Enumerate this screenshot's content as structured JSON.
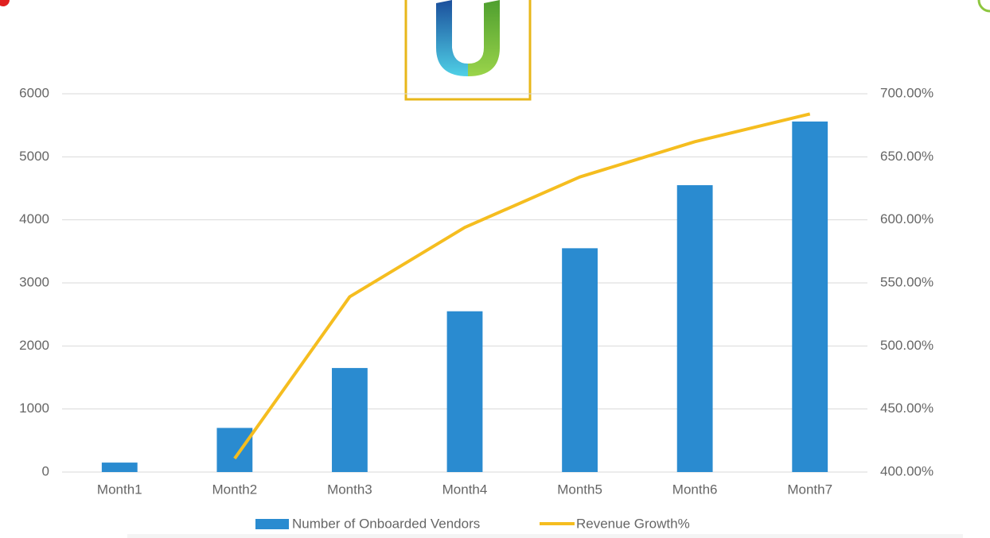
{
  "chart_data": {
    "type": "bar-line",
    "categories": [
      "Month1",
      "Month2",
      "Month3",
      "Month4",
      "Month5",
      "Month6",
      "Month7"
    ],
    "series": [
      {
        "name": "Number of Onboarded Vendors",
        "type": "bar",
        "color": "#2a8bd0",
        "values": [
          150,
          700,
          1650,
          2550,
          3550,
          4550,
          5560
        ]
      },
      {
        "name": "Revenue Growth%",
        "type": "line",
        "axis": "y2",
        "color": "#f5bd1f",
        "values": [
          null,
          410.7,
          539,
          594,
          634,
          662,
          684
        ]
      }
    ],
    "ylim": [
      0,
      6000
    ],
    "yticks": [
      0,
      1000,
      2000,
      3000,
      4000,
      5000,
      6000
    ],
    "y2lim": [
      400,
      700
    ],
    "y2ticks": [
      {
        "value": 400,
        "label": "400.00%"
      },
      {
        "value": 450,
        "label": "450.00%"
      },
      {
        "value": 500,
        "label": "500.00%"
      },
      {
        "value": 550,
        "label": "550.00%"
      },
      {
        "value": 600,
        "label": "600.00%"
      },
      {
        "value": 650,
        "label": "650.00%"
      },
      {
        "value": 700,
        "label": "700.00%"
      }
    ],
    "grid": true,
    "legend": "bottom"
  }
}
